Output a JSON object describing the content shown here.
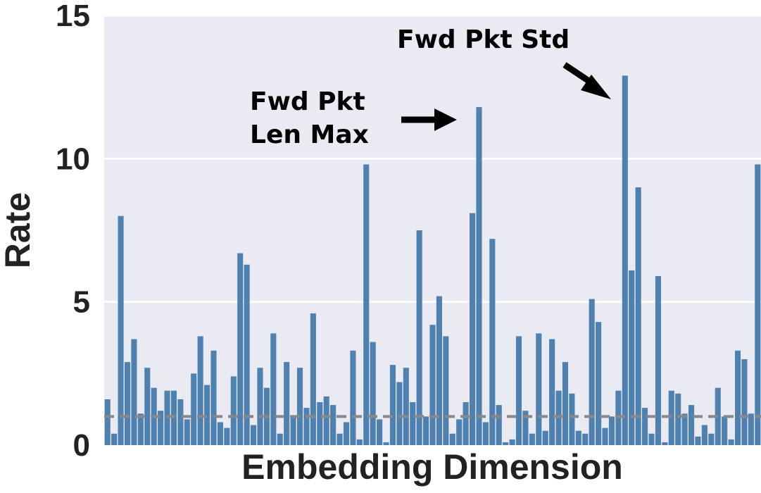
{
  "chart_data": {
    "type": "bar",
    "xlabel": "Embedding Dimension",
    "ylabel": "Rate",
    "ylim": [
      0,
      15
    ],
    "yticks": [
      "0",
      "5",
      "10",
      "15"
    ],
    "grid": "horizontal",
    "background": "#eaeaf2",
    "bar_color": "#4e81b0",
    "baseline": {
      "value": 1.0,
      "style": "dashed",
      "color": "#888888"
    },
    "values": [
      1.6,
      0.4,
      8.0,
      2.9,
      3.7,
      1.1,
      2.7,
      2.0,
      1.2,
      1.9,
      1.9,
      1.6,
      0.9,
      2.5,
      3.8,
      2.1,
      3.3,
      0.8,
      0.6,
      2.4,
      6.7,
      6.3,
      0.7,
      2.7,
      2.0,
      3.9,
      0.4,
      2.9,
      1.0,
      2.7,
      1.3,
      4.6,
      1.5,
      1.7,
      1.4,
      0.4,
      0.8,
      3.3,
      0.2,
      9.8,
      3.6,
      0.9,
      0.1,
      2.8,
      2.2,
      2.7,
      1.5,
      7.5,
      1.0,
      4.2,
      5.2,
      3.8,
      0.4,
      0.9,
      1.5,
      8.1,
      11.8,
      0.8,
      7.2,
      1.4,
      0.1,
      0.2,
      3.8,
      1.2,
      0.4,
      3.9,
      0.5,
      3.7,
      1.9,
      2.9,
      1.8,
      0.5,
      0.4,
      5.1,
      4.3,
      0.6,
      1.0,
      1.9,
      12.9,
      6.1,
      9.0,
      1.3,
      0.4,
      5.9,
      0.1,
      1.9,
      1.8,
      1.1,
      1.4,
      0.3,
      0.7,
      0.4,
      2.0,
      1.0,
      0.2,
      3.3,
      3.0,
      1.1,
      9.8
    ],
    "annotations": [
      {
        "text_lines": [
          "Fwd Pkt",
          "Len Max"
        ],
        "bar_index": 56,
        "value": 11.8,
        "arrow_direction": "right"
      },
      {
        "text_lines": [
          "Fwd Pkt Std"
        ],
        "bar_index": 78,
        "value": 12.9,
        "arrow_direction": "down-right"
      }
    ]
  }
}
